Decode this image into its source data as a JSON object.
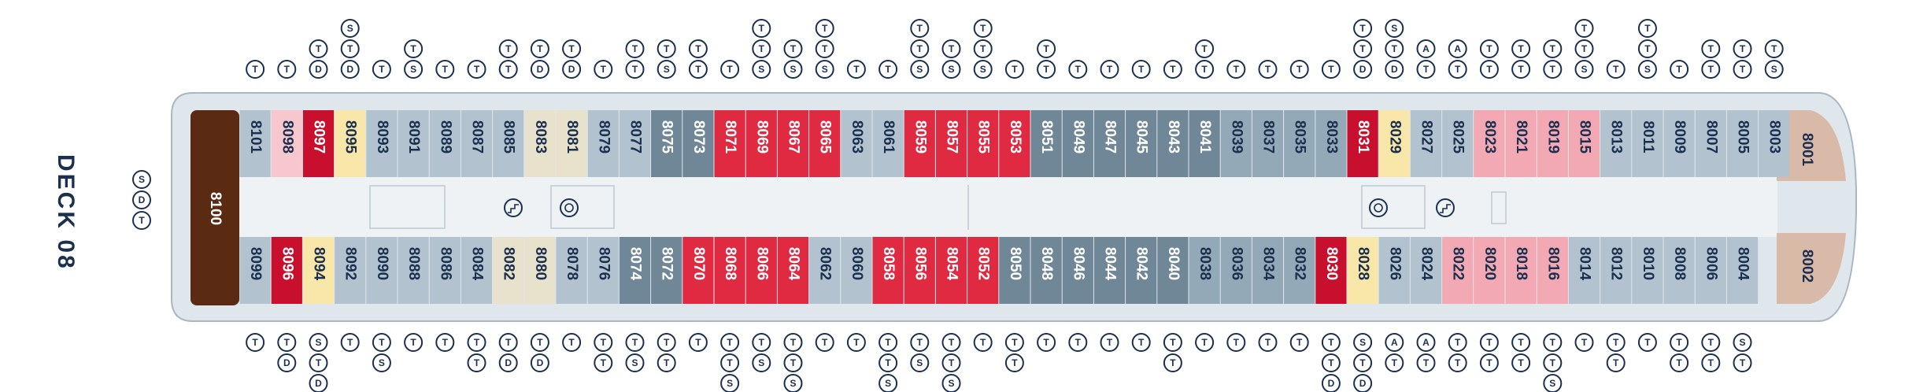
{
  "deck_label": "DECK 08",
  "aft_symbols": [
    "S",
    "D",
    "T"
  ],
  "colors": {
    "red": "#df2a42",
    "darkred": "#c8102e",
    "pink": "#f2a9b3",
    "lightpink": "#f6c7cd",
    "yellow": "#f8e7a8",
    "beige": "#e8e1cc",
    "slate": "#6f8797",
    "steel": "#94a9b8",
    "gray": "#b2c3cf",
    "lightgray": "#c7d4dc",
    "brown": "#5a2a12",
    "tan": "#d9b9a8",
    "hull": "#dfe6ec",
    "corridor": "#eef2f5",
    "ink": "#1b2f4e"
  },
  "suites": [
    {
      "num": "8100",
      "color": "brown"
    },
    {
      "num": "8001",
      "color": "tan"
    },
    {
      "num": "8002",
      "color": "tan"
    }
  ],
  "top_cabins": [
    {
      "num": "8101",
      "color": "gray",
      "syms": [
        "T"
      ]
    },
    {
      "num": "8098",
      "color": "lightpink",
      "syms": [
        "T"
      ]
    },
    {
      "num": "8097",
      "color": "darkred",
      "syms": [
        "D",
        "T"
      ]
    },
    {
      "num": "8095",
      "color": "yellow",
      "syms": [
        "D",
        "T",
        "S"
      ]
    },
    {
      "num": "8093",
      "color": "gray",
      "syms": [
        "T"
      ]
    },
    {
      "num": "8091",
      "color": "gray",
      "syms": [
        "S",
        "T"
      ]
    },
    {
      "num": "8089",
      "color": "gray",
      "syms": [
        "T"
      ]
    },
    {
      "num": "8087",
      "color": "gray",
      "syms": [
        "T"
      ]
    },
    {
      "num": "8085",
      "color": "gray",
      "syms": [
        "T",
        "T"
      ]
    },
    {
      "num": "8083",
      "color": "beige",
      "syms": [
        "D",
        "T"
      ]
    },
    {
      "num": "8081",
      "color": "beige",
      "syms": [
        "D",
        "T"
      ]
    },
    {
      "num": "8079",
      "color": "gray",
      "syms": [
        "T"
      ]
    },
    {
      "num": "8077",
      "color": "gray",
      "syms": [
        "T",
        "T"
      ]
    },
    {
      "num": "8075",
      "color": "slate",
      "syms": [
        "S",
        "T"
      ]
    },
    {
      "num": "8073",
      "color": "slate",
      "syms": [
        "T",
        "T"
      ]
    },
    {
      "num": "8071",
      "color": "red",
      "syms": [
        "T"
      ]
    },
    {
      "num": "8069",
      "color": "red",
      "syms": [
        "S",
        "T",
        "T"
      ]
    },
    {
      "num": "8067",
      "color": "red",
      "syms": [
        "S",
        "T"
      ]
    },
    {
      "num": "8065",
      "color": "red",
      "syms": [
        "S",
        "T",
        "T"
      ]
    },
    {
      "num": "8063",
      "color": "gray",
      "syms": [
        "T"
      ]
    },
    {
      "num": "8061",
      "color": "gray",
      "syms": [
        "T"
      ]
    },
    {
      "num": "8059",
      "color": "red",
      "syms": [
        "S",
        "T",
        "T"
      ]
    },
    {
      "num": "8057",
      "color": "red",
      "syms": [
        "S",
        "T"
      ]
    },
    {
      "num": "8055",
      "color": "red",
      "syms": [
        "S",
        "T",
        "T"
      ]
    },
    {
      "num": "8053",
      "color": "red",
      "syms": [
        "T"
      ]
    },
    {
      "num": "8051",
      "color": "slate",
      "syms": [
        "T",
        "T"
      ]
    },
    {
      "num": "8049",
      "color": "slate",
      "syms": [
        "T"
      ]
    },
    {
      "num": "8047",
      "color": "slate",
      "syms": [
        "T"
      ]
    },
    {
      "num": "8045",
      "color": "slate",
      "syms": [
        "T"
      ]
    },
    {
      "num": "8043",
      "color": "slate",
      "syms": [
        "T"
      ]
    },
    {
      "num": "8041",
      "color": "slate",
      "syms": [
        "T",
        "T"
      ]
    },
    {
      "num": "8039",
      "color": "steel",
      "syms": [
        "T"
      ]
    },
    {
      "num": "8037",
      "color": "steel",
      "syms": [
        "T"
      ]
    },
    {
      "num": "8035",
      "color": "steel",
      "syms": [
        "T"
      ]
    },
    {
      "num": "8033",
      "color": "steel",
      "syms": [
        "T"
      ]
    },
    {
      "num": "8031",
      "color": "darkred",
      "syms": [
        "D",
        "T",
        "T"
      ]
    },
    {
      "num": "8029",
      "color": "yellow",
      "syms": [
        "D",
        "T",
        "S"
      ]
    },
    {
      "num": "8027",
      "color": "gray",
      "syms": [
        "T",
        "A"
      ]
    },
    {
      "num": "8025",
      "color": "gray",
      "syms": [
        "T",
        "A"
      ]
    },
    {
      "num": "8023",
      "color": "pink",
      "syms": [
        "T",
        "T"
      ]
    },
    {
      "num": "8021",
      "color": "pink",
      "syms": [
        "T",
        "T"
      ]
    },
    {
      "num": "8019",
      "color": "pink",
      "syms": [
        "T",
        "T"
      ]
    },
    {
      "num": "8015",
      "color": "pink",
      "syms": [
        "S",
        "T",
        "T"
      ]
    },
    {
      "num": "8013",
      "color": "gray",
      "syms": [
        "T"
      ]
    },
    {
      "num": "8011",
      "color": "gray",
      "syms": [
        "S",
        "T",
        "T"
      ]
    },
    {
      "num": "8009",
      "color": "gray",
      "syms": [
        "T"
      ]
    },
    {
      "num": "8007",
      "color": "gray",
      "syms": [
        "T",
        "T"
      ]
    },
    {
      "num": "8005",
      "color": "gray",
      "syms": [
        "T",
        "T"
      ]
    },
    {
      "num": "8003",
      "color": "gray",
      "syms": [
        "S",
        "T"
      ]
    }
  ],
  "bottom_cabins": [
    {
      "num": "8099",
      "color": "gray",
      "syms": [
        "T"
      ]
    },
    {
      "num": "8096",
      "color": "darkred",
      "syms": [
        "T",
        "D"
      ]
    },
    {
      "num": "8094",
      "color": "yellow",
      "syms": [
        "S",
        "T",
        "D"
      ]
    },
    {
      "num": "8092",
      "color": "gray",
      "syms": [
        "T"
      ]
    },
    {
      "num": "8090",
      "color": "gray",
      "syms": [
        "T",
        "S"
      ]
    },
    {
      "num": "8088",
      "color": "gray",
      "syms": [
        "T"
      ]
    },
    {
      "num": "8086",
      "color": "gray",
      "syms": [
        "T"
      ]
    },
    {
      "num": "8084",
      "color": "gray",
      "syms": [
        "T",
        "T"
      ]
    },
    {
      "num": "8082",
      "color": "beige",
      "syms": [
        "T",
        "D"
      ]
    },
    {
      "num": "8080",
      "color": "beige",
      "syms": [
        "T",
        "D"
      ]
    },
    {
      "num": "8078",
      "color": "gray",
      "syms": [
        "T"
      ]
    },
    {
      "num": "8076",
      "color": "gray",
      "syms": [
        "T",
        "T"
      ]
    },
    {
      "num": "8074",
      "color": "slate",
      "syms": [
        "T",
        "S"
      ]
    },
    {
      "num": "8072",
      "color": "slate",
      "syms": [
        "T",
        "T"
      ]
    },
    {
      "num": "8070",
      "color": "red",
      "syms": [
        "T"
      ]
    },
    {
      "num": "8068",
      "color": "red",
      "syms": [
        "T",
        "T",
        "S"
      ]
    },
    {
      "num": "8066",
      "color": "red",
      "syms": [
        "T",
        "S"
      ]
    },
    {
      "num": "8064",
      "color": "red",
      "syms": [
        "T",
        "T",
        "S"
      ]
    },
    {
      "num": "8062",
      "color": "gray",
      "syms": [
        "T"
      ]
    },
    {
      "num": "8060",
      "color": "gray",
      "syms": [
        "T"
      ]
    },
    {
      "num": "8058",
      "color": "red",
      "syms": [
        "T",
        "T",
        "S"
      ]
    },
    {
      "num": "8056",
      "color": "red",
      "syms": [
        "T",
        "S"
      ]
    },
    {
      "num": "8054",
      "color": "red",
      "syms": [
        "T",
        "T",
        "S"
      ]
    },
    {
      "num": "8052",
      "color": "red",
      "syms": [
        "T"
      ]
    },
    {
      "num": "8050",
      "color": "slate",
      "syms": [
        "T",
        "T"
      ]
    },
    {
      "num": "8048",
      "color": "slate",
      "syms": [
        "T"
      ]
    },
    {
      "num": "8046",
      "color": "slate",
      "syms": [
        "T"
      ]
    },
    {
      "num": "8044",
      "color": "slate",
      "syms": [
        "T"
      ]
    },
    {
      "num": "8042",
      "color": "slate",
      "syms": [
        "T"
      ]
    },
    {
      "num": "8040",
      "color": "slate",
      "syms": [
        "T",
        "T"
      ]
    },
    {
      "num": "8038",
      "color": "steel",
      "syms": [
        "T"
      ]
    },
    {
      "num": "8036",
      "color": "steel",
      "syms": [
        "T"
      ]
    },
    {
      "num": "8034",
      "color": "steel",
      "syms": [
        "T"
      ]
    },
    {
      "num": "8032",
      "color": "steel",
      "syms": [
        "T"
      ]
    },
    {
      "num": "8030",
      "color": "darkred",
      "syms": [
        "T",
        "T",
        "D"
      ]
    },
    {
      "num": "8028",
      "color": "yellow",
      "syms": [
        "S",
        "T",
        "D"
      ]
    },
    {
      "num": "8026",
      "color": "gray",
      "syms": [
        "A",
        "T"
      ]
    },
    {
      "num": "8024",
      "color": "gray",
      "syms": [
        "A",
        "T"
      ]
    },
    {
      "num": "8022",
      "color": "pink",
      "syms": [
        "T",
        "T"
      ]
    },
    {
      "num": "8020",
      "color": "pink",
      "syms": [
        "T",
        "T"
      ]
    },
    {
      "num": "8018",
      "color": "pink",
      "syms": [
        "T",
        "T"
      ]
    },
    {
      "num": "8016",
      "color": "pink",
      "syms": [
        "T",
        "T",
        "S"
      ]
    },
    {
      "num": "8014",
      "color": "gray",
      "syms": [
        "T"
      ]
    },
    {
      "num": "8012",
      "color": "gray",
      "syms": [
        "T",
        "T"
      ]
    },
    {
      "num": "8010",
      "color": "gray",
      "syms": [
        "T"
      ]
    },
    {
      "num": "8008",
      "color": "gray",
      "syms": [
        "T",
        "T"
      ]
    },
    {
      "num": "8006",
      "color": "gray",
      "syms": [
        "T",
        "T"
      ]
    },
    {
      "num": "8004",
      "color": "gray",
      "syms": [
        "S",
        "T"
      ]
    }
  ]
}
